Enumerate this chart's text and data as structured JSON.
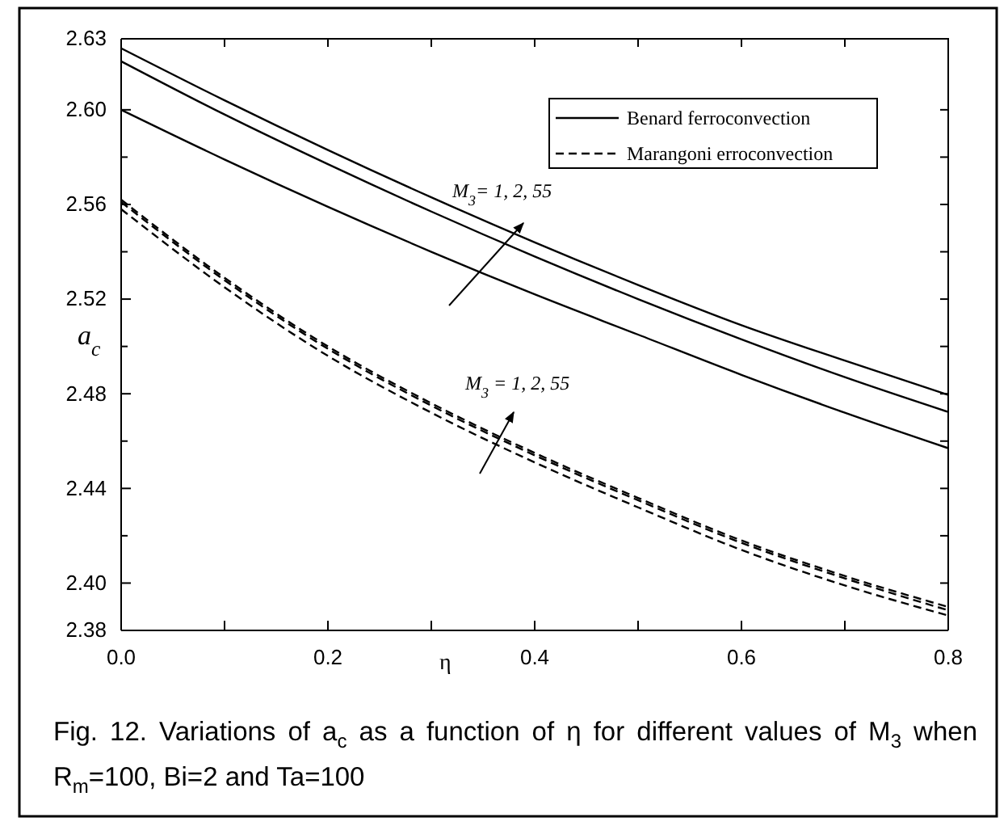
{
  "chart_data": {
    "type": "line",
    "xlabel": "η",
    "ylabel": "a$_{c}$",
    "x": [
      0,
      0.1,
      0.2,
      0.3,
      0.4,
      0.5,
      0.6,
      0.7,
      0.8
    ],
    "series": [
      {
        "name": "Benard ferroconvection",
        "color": "#000000",
        "line_style": "solid",
        "values": [
          2.626,
          2.604,
          2.583,
          2.563,
          2.544,
          2.526,
          2.509,
          2.494,
          2.4795
        ]
      },
      {
        "color": "#000000",
        "line_style": "solid",
        "values": [
          2.6205,
          2.598,
          2.577,
          2.557,
          2.538,
          2.52,
          2.503,
          2.487,
          2.4723
        ]
      },
      {
        "color": "#000000",
        "line_style": "solid",
        "values": [
          2.6,
          2.579,
          2.559,
          2.54,
          2.522,
          2.505,
          2.488,
          2.472,
          2.457
        ]
      },
      {
        "name": "Marangoni erroconvection",
        "color": "#000000",
        "line_style": "dashed",
        "values": [
          2.562,
          2.529,
          2.5,
          2.476,
          2.455,
          2.436,
          2.418,
          2.403,
          2.3899
        ]
      },
      {
        "color": "#000000",
        "line_style": "dashed",
        "values": [
          2.561,
          2.528,
          2.499,
          2.475,
          2.454,
          2.435,
          2.417,
          2.402,
          2.3885
        ]
      },
      {
        "color": "#000000",
        "line_style": "dashed",
        "values": [
          2.558,
          2.525,
          2.496,
          2.472,
          2.451,
          2.432,
          2.414,
          2.399,
          2.3863
        ]
      }
    ],
    "xlim": [
      0,
      0.8
    ],
    "xticks": [
      {
        "value": 0,
        "label": "0.0"
      },
      {
        "value": 0.1,
        "label": null
      },
      {
        "value": 0.2,
        "label": "0.2"
      },
      {
        "value": 0.3,
        "label": null
      },
      {
        "value": 0.4,
        "label": "0.4"
      },
      {
        "value": 0.5,
        "label": null
      },
      {
        "value": 0.6,
        "label": "0.6"
      },
      {
        "value": 0.7,
        "label": null
      },
      {
        "value": 0.8,
        "label": "0.8"
      }
    ],
    "ylim": [
      2.38,
      2.63
    ],
    "yticks": [
      2.38,
      {
        "value": 2.4,
        "label": "2.40"
      },
      {
        "value": 2.42,
        "label": null
      },
      2.44,
      {
        "value": 2.46,
        "label": null
      },
      2.48,
      {
        "value": 2.5,
        "label": null
      },
      2.52,
      {
        "value": 2.54,
        "label": null
      },
      2.56,
      {
        "value": 2.58,
        "label": null
      },
      {
        "value": 2.6,
        "label": "2.60"
      },
      2.63
    ],
    "grid": false,
    "legend": "top right",
    "marker": "none",
    "annotations": [
      "M$_{3}$= 1, 2, 55",
      "M$_{3}$ = 1, 2, 55",
      "Fig. 12. Variations of a$_{c}$ as a function of η for different values of M$_{3}$ when R$_{m}$=100,  Bi=2 and Ta=100"
    ]
  }
}
